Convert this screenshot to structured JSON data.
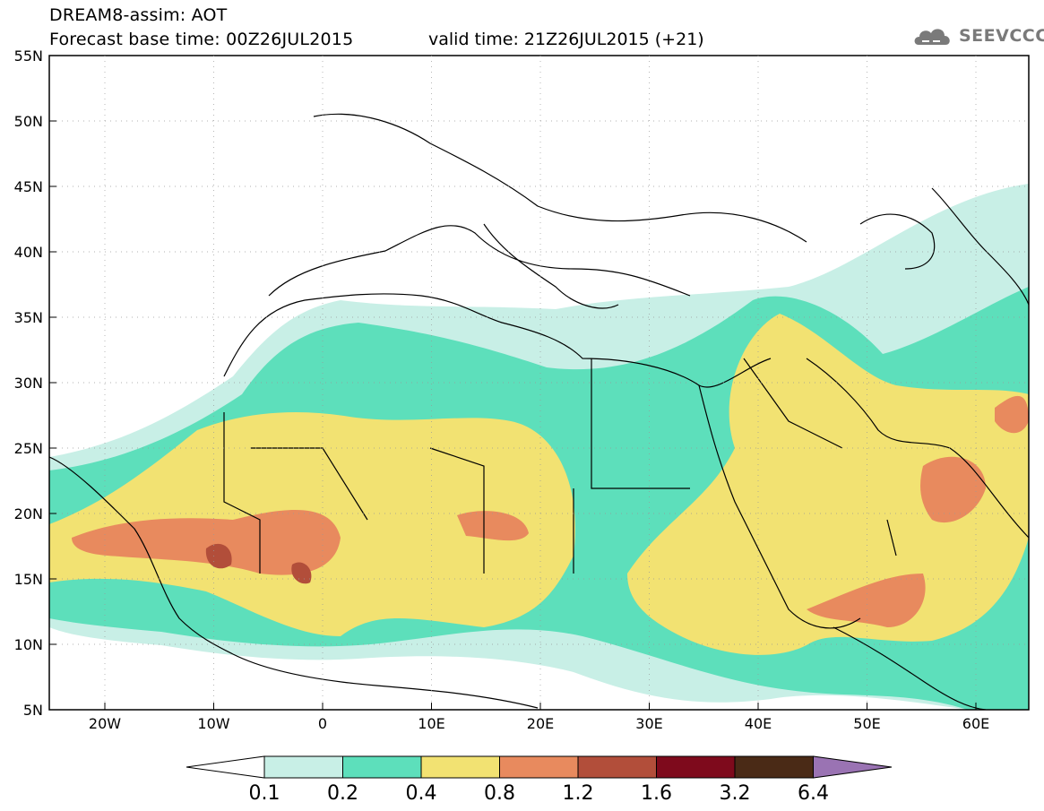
{
  "header": {
    "line1": "DREAM8-assim: AOT",
    "line2": "Forecast base time: 00Z26JUL2015",
    "valid": "valid time: 21Z26JUL2015 (+21)"
  },
  "logo": {
    "text": "SEEVCCC",
    "icon": "cloud-icon"
  },
  "axes": {
    "lat_labels": [
      "55N",
      "50N",
      "45N",
      "40N",
      "35N",
      "30N",
      "25N",
      "20N",
      "15N",
      "10N",
      "5N"
    ],
    "lon_labels": [
      "20W",
      "10W",
      "0",
      "10E",
      "20E",
      "30E",
      "40E",
      "50E",
      "60E"
    ]
  },
  "colorbar": {
    "colors": [
      "#ffffff",
      "#c8efe6",
      "#5ddfbb",
      "#f2e272",
      "#e88a5e",
      "#b24e3a",
      "#7e0a1c",
      "#4a2a16",
      "#9a73b3"
    ],
    "labels": [
      "0.1",
      "0.2",
      "0.4",
      "0.8",
      "1.2",
      "1.6",
      "3.2",
      "6.4"
    ]
  }
}
